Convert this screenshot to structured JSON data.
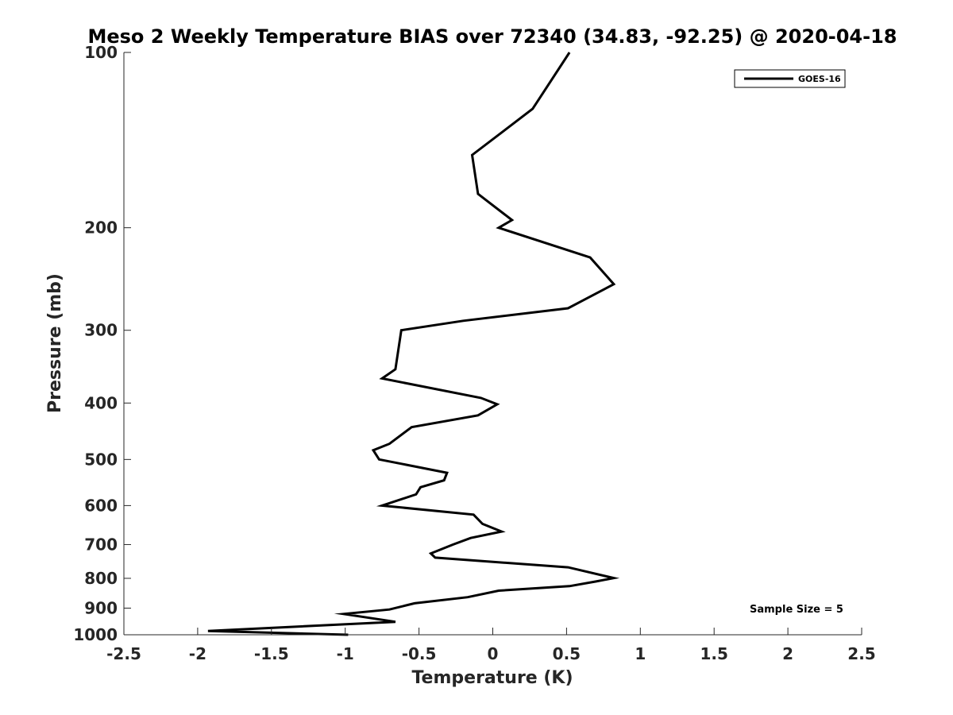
{
  "chart_data": {
    "type": "line",
    "title": "Meso 2 Weekly Temperature BIAS over 72340 (34.83, -92.25) @ 2020-04-18",
    "xlabel": "Temperature (K)",
    "ylabel": "Pressure (mb)",
    "xlim": [
      -2.5,
      2.5
    ],
    "ylim": [
      1000,
      100
    ],
    "yscale": "log",
    "y_reversed": true,
    "grid": false,
    "legend_position": "top-right",
    "x_ticks": [
      -2.5,
      -2,
      -1.5,
      -1,
      -0.5,
      0,
      0.5,
      1,
      1.5,
      2,
      2.5
    ],
    "x_tick_labels": [
      "-2.5",
      "-2",
      "-1.5",
      "-1",
      "-0.5",
      "0",
      "0.5",
      "1",
      "1.5",
      "2",
      "2.5"
    ],
    "y_ticks": [
      100,
      200,
      300,
      400,
      500,
      600,
      700,
      800,
      900,
      1000
    ],
    "y_tick_labels": [
      "100",
      "200",
      "300",
      "400",
      "500",
      "600",
      "700",
      "800",
      "900",
      "1000"
    ],
    "annotation": "Sample Size = 5",
    "series": [
      {
        "name": "GOES-16",
        "color": "#000000",
        "points": [
          {
            "x": 0.52,
            "y": 100
          },
          {
            "x": 0.27,
            "y": 125
          },
          {
            "x": -0.14,
            "y": 150
          },
          {
            "x": -0.1,
            "y": 175
          },
          {
            "x": 0.13,
            "y": 194
          },
          {
            "x": 0.04,
            "y": 200
          },
          {
            "x": 0.66,
            "y": 225
          },
          {
            "x": 0.82,
            "y": 250
          },
          {
            "x": 0.51,
            "y": 275
          },
          {
            "x": -0.2,
            "y": 289
          },
          {
            "x": -0.62,
            "y": 300
          },
          {
            "x": -0.66,
            "y": 350
          },
          {
            "x": -0.75,
            "y": 363
          },
          {
            "x": -0.08,
            "y": 392
          },
          {
            "x": 0.03,
            "y": 402
          },
          {
            "x": -0.1,
            "y": 420
          },
          {
            "x": -0.55,
            "y": 440
          },
          {
            "x": -0.7,
            "y": 470
          },
          {
            "x": -0.81,
            "y": 482
          },
          {
            "x": -0.77,
            "y": 500
          },
          {
            "x": -0.31,
            "y": 527
          },
          {
            "x": -0.33,
            "y": 543
          },
          {
            "x": -0.49,
            "y": 558
          },
          {
            "x": -0.52,
            "y": 574
          },
          {
            "x": -0.75,
            "y": 600
          },
          {
            "x": -0.13,
            "y": 622
          },
          {
            "x": -0.07,
            "y": 645
          },
          {
            "x": 0.06,
            "y": 665
          },
          {
            "x": -0.15,
            "y": 682
          },
          {
            "x": -0.27,
            "y": 700
          },
          {
            "x": -0.42,
            "y": 725
          },
          {
            "x": -0.39,
            "y": 737
          },
          {
            "x": 0.51,
            "y": 766
          },
          {
            "x": 0.82,
            "y": 799
          },
          {
            "x": 0.7,
            "y": 810
          },
          {
            "x": 0.52,
            "y": 825
          },
          {
            "x": 0.04,
            "y": 840
          },
          {
            "x": -0.17,
            "y": 862
          },
          {
            "x": -0.53,
            "y": 883
          },
          {
            "x": -0.7,
            "y": 905
          },
          {
            "x": -1.01,
            "y": 921
          },
          {
            "x": -0.66,
            "y": 950
          },
          {
            "x": -1.93,
            "y": 985
          },
          {
            "x": -0.98,
            "y": 1000
          }
        ]
      }
    ]
  }
}
